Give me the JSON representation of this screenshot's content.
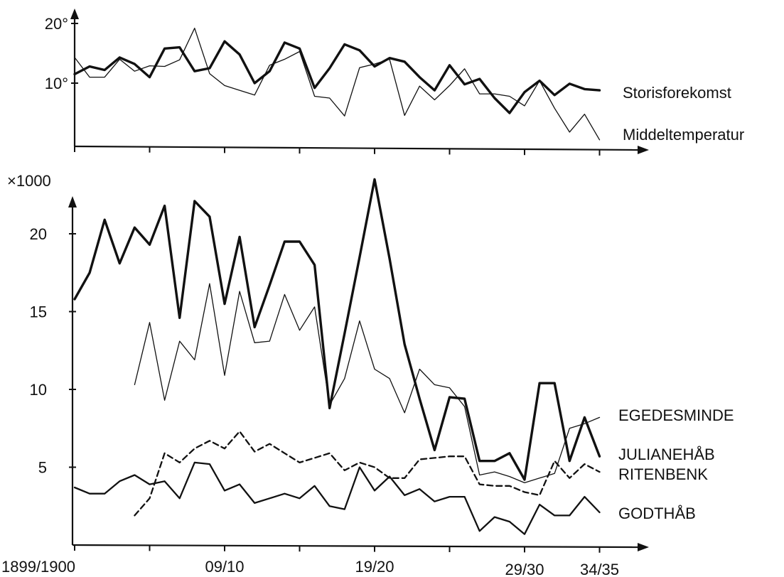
{
  "chart_data": [
    {
      "type": "line",
      "x_start_year": 1899,
      "y_ticks": [
        {
          "value": 10,
          "label": "10°"
        },
        {
          "value": 20,
          "label": "20°"
        }
      ],
      "ylim": [
        4.5,
        22
      ],
      "series": [
        {
          "name": "Storisforekomst",
          "style": "thick",
          "color": "#111111",
          "values": [
            11.5,
            12.8,
            12.2,
            14.3,
            13.2,
            11.0,
            15.8,
            16.0,
            12.0,
            12.5,
            17.0,
            14.8,
            10.0,
            12.0,
            16.8,
            15.8,
            9.2,
            12.5,
            16.5,
            15.5,
            12.8,
            14.2,
            13.6,
            11.0,
            8.8,
            13.0,
            9.8,
            10.7,
            7.5,
            5.0,
            8.5,
            10.4,
            8.0,
            9.9,
            9.0,
            8.8
          ]
        },
        {
          "name": "Middeltemperatur",
          "style": "thin",
          "color": "#111111",
          "values": [
            14.3,
            11.0,
            11.0,
            14.0,
            12.0,
            12.9,
            12.8,
            13.9,
            19.2,
            11.6,
            9.6,
            8.8,
            8.0,
            13.0,
            14.0,
            15.3,
            7.8,
            7.5,
            4.5,
            12.6,
            13.2,
            14.0,
            4.6,
            9.5,
            7.2,
            9.6,
            12.4,
            8.2,
            8.2,
            7.8,
            6.2,
            10.4,
            5.8,
            1.8,
            4.8,
            0.5
          ]
        }
      ]
    },
    {
      "type": "line",
      "x_start_year": 1899,
      "y_unit_label": "×1000",
      "y_ticks": [
        {
          "value": 5,
          "label": "5"
        },
        {
          "value": 10,
          "label": "10"
        },
        {
          "value": 15,
          "label": "15"
        },
        {
          "value": 20,
          "label": "20"
        }
      ],
      "ylim": [
        0,
        23.5
      ],
      "x_tick_labels": [
        {
          "index": 0,
          "label": "1899/1900"
        },
        {
          "index": 10,
          "label": "09/10"
        },
        {
          "index": 20,
          "label": "19/20"
        },
        {
          "index": 30,
          "label": "29/30"
        },
        {
          "index": 35,
          "label": "34/35"
        }
      ],
      "series": [
        {
          "name": "EGEDESMINDE",
          "style": "thick",
          "color": "#111111",
          "values": [
            15.8,
            17.5,
            20.9,
            18.1,
            20.4,
            19.3,
            21.8,
            14.6,
            22.1,
            21.1,
            15.5,
            19.8,
            14.0,
            16.7,
            19.5,
            19.5,
            18.0,
            8.8,
            13.6,
            18.5,
            23.5,
            18.4,
            12.9,
            9.4,
            6.1,
            9.5,
            9.4,
            5.4,
            5.4,
            5.9,
            4.2,
            10.4,
            10.4,
            5.4,
            8.2,
            5.7
          ]
        },
        {
          "name": "JULIANEHÅB",
          "style": "thin",
          "color": "#111111",
          "values": [
            null,
            null,
            null,
            null,
            10.3,
            14.3,
            9.3,
            13.1,
            11.9,
            16.8,
            10.9,
            16.3,
            13.0,
            13.1,
            16.1,
            13.8,
            15.3,
            9.0,
            10.7,
            14.4,
            11.3,
            10.7,
            8.5,
            11.3,
            10.3,
            10.1,
            8.9,
            4.5,
            4.7,
            4.4,
            4.0,
            4.3,
            4.6,
            7.5,
            7.8,
            8.2
          ]
        },
        {
          "name": "RITENBENK",
          "style": "dashed",
          "color": "#111111",
          "values": [
            null,
            null,
            null,
            null,
            1.9,
            3.0,
            5.9,
            5.3,
            6.2,
            6.7,
            6.2,
            7.3,
            6.0,
            6.5,
            5.9,
            5.3,
            5.6,
            5.9,
            4.8,
            5.3,
            5.0,
            4.3,
            4.3,
            5.5,
            5.6,
            5.7,
            5.7,
            3.9,
            3.8,
            3.8,
            3.4,
            3.2,
            5.4,
            4.3,
            5.2,
            4.7
          ]
        },
        {
          "name": "GODTHÅB",
          "style": "medium",
          "color": "#111111",
          "values": [
            3.7,
            3.3,
            3.3,
            4.1,
            4.5,
            3.9,
            4.1,
            3.0,
            5.3,
            5.2,
            3.5,
            3.9,
            2.7,
            3.0,
            3.3,
            3.0,
            3.8,
            2.5,
            2.3,
            5.0,
            3.5,
            4.4,
            3.2,
            3.6,
            2.8,
            3.1,
            3.1,
            0.9,
            1.8,
            1.5,
            0.7,
            2.6,
            1.9,
            1.9,
            3.1,
            2.1
          ]
        }
      ]
    }
  ]
}
